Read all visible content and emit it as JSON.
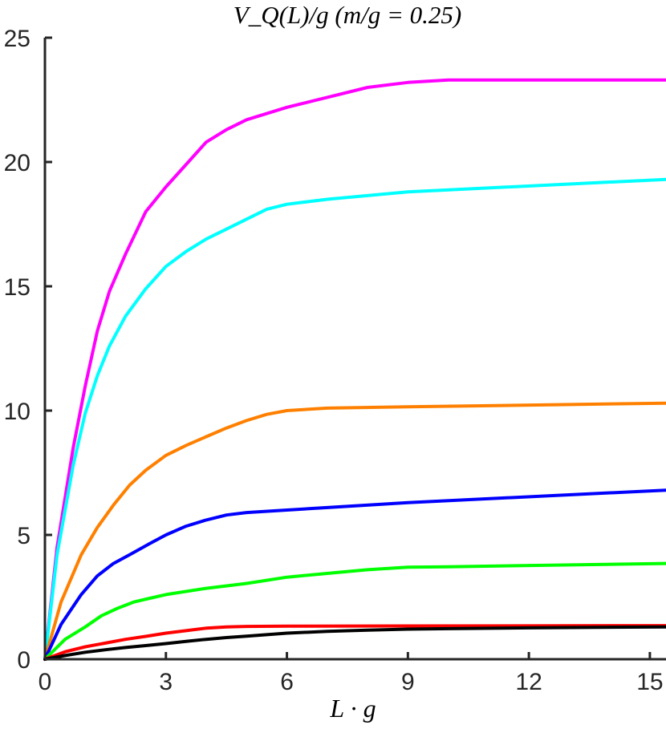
{
  "chart_data": {
    "type": "line",
    "title": "V_Q(L)/g (m/g = 0.25)",
    "xlabel": "L · g",
    "ylabel": "",
    "xlim": [
      0,
      15.4
    ],
    "ylim": [
      0,
      25
    ],
    "xticks": [
      0,
      3,
      6,
      9,
      12,
      15
    ],
    "yticks": [
      0,
      5,
      10,
      15,
      20,
      25
    ],
    "grid": false,
    "series": [
      {
        "color": "#ff00ff",
        "points": [
          [
            0,
            0
          ],
          [
            0.3,
            4.5
          ],
          [
            0.7,
            8.5
          ],
          [
            1.0,
            11.0
          ],
          [
            1.3,
            13.2
          ],
          [
            1.6,
            14.8
          ],
          [
            2.0,
            16.3
          ],
          [
            2.5,
            18.0
          ],
          [
            3.0,
            19.0
          ],
          [
            3.5,
            19.9
          ],
          [
            4.0,
            20.8
          ],
          [
            4.5,
            21.3
          ],
          [
            5.0,
            21.7
          ],
          [
            6.0,
            22.2
          ],
          [
            7.0,
            22.6
          ],
          [
            8.0,
            23.0
          ],
          [
            9.0,
            23.2
          ],
          [
            10.0,
            23.3
          ],
          [
            15.4,
            23.3
          ]
        ]
      },
      {
        "color": "#00ffff",
        "points": [
          [
            0,
            0
          ],
          [
            0.3,
            4.2
          ],
          [
            0.7,
            7.8
          ],
          [
            1.0,
            9.9
          ],
          [
            1.3,
            11.4
          ],
          [
            1.6,
            12.6
          ],
          [
            2.0,
            13.8
          ],
          [
            2.5,
            14.9
          ],
          [
            3.0,
            15.8
          ],
          [
            3.5,
            16.4
          ],
          [
            4.0,
            16.9
          ],
          [
            4.5,
            17.3
          ],
          [
            5.0,
            17.7
          ],
          [
            5.5,
            18.1
          ],
          [
            6.0,
            18.3
          ],
          [
            7.0,
            18.5
          ],
          [
            9.0,
            18.8
          ],
          [
            15.4,
            19.3
          ]
        ]
      },
      {
        "color": "#ff8000",
        "points": [
          [
            0,
            0
          ],
          [
            0.4,
            2.3
          ],
          [
            0.9,
            4.2
          ],
          [
            1.3,
            5.3
          ],
          [
            1.7,
            6.2
          ],
          [
            2.1,
            7.0
          ],
          [
            2.5,
            7.6
          ],
          [
            3.0,
            8.2
          ],
          [
            3.5,
            8.6
          ],
          [
            4.0,
            8.95
          ],
          [
            4.5,
            9.3
          ],
          [
            5.0,
            9.6
          ],
          [
            5.5,
            9.85
          ],
          [
            6.0,
            10.0
          ],
          [
            7.0,
            10.1
          ],
          [
            9.0,
            10.15
          ],
          [
            15.4,
            10.3
          ]
        ]
      },
      {
        "color": "#0000ff",
        "points": [
          [
            0,
            0
          ],
          [
            0.4,
            1.4
          ],
          [
            0.9,
            2.6
          ],
          [
            1.3,
            3.35
          ],
          [
            1.7,
            3.85
          ],
          [
            2.1,
            4.2
          ],
          [
            2.6,
            4.65
          ],
          [
            3.0,
            5.0
          ],
          [
            3.5,
            5.35
          ],
          [
            4.0,
            5.6
          ],
          [
            4.5,
            5.8
          ],
          [
            5.0,
            5.9
          ],
          [
            6.0,
            6.0
          ],
          [
            9.0,
            6.3
          ],
          [
            15.4,
            6.8
          ]
        ]
      },
      {
        "color": "#00ff00",
        "points": [
          [
            0,
            0
          ],
          [
            0.5,
            0.8
          ],
          [
            1.0,
            1.3
          ],
          [
            1.4,
            1.75
          ],
          [
            1.8,
            2.05
          ],
          [
            2.2,
            2.3
          ],
          [
            2.6,
            2.45
          ],
          [
            3.0,
            2.6
          ],
          [
            4.0,
            2.85
          ],
          [
            5.0,
            3.05
          ],
          [
            6.0,
            3.3
          ],
          [
            7.0,
            3.45
          ],
          [
            8.0,
            3.6
          ],
          [
            9.0,
            3.7
          ],
          [
            10.0,
            3.72
          ],
          [
            15.4,
            3.85
          ]
        ]
      },
      {
        "color": "#ff0000",
        "points": [
          [
            0,
            0
          ],
          [
            0.5,
            0.3
          ],
          [
            1.0,
            0.5
          ],
          [
            1.5,
            0.65
          ],
          [
            2.0,
            0.8
          ],
          [
            2.5,
            0.92
          ],
          [
            3.0,
            1.05
          ],
          [
            3.5,
            1.15
          ],
          [
            4.0,
            1.25
          ],
          [
            4.5,
            1.3
          ],
          [
            5.0,
            1.32
          ],
          [
            6.0,
            1.33
          ],
          [
            9.0,
            1.34
          ],
          [
            15.4,
            1.35
          ]
        ]
      },
      {
        "color": "#000000",
        "points": [
          [
            0,
            0
          ],
          [
            0.5,
            0.15
          ],
          [
            1.0,
            0.28
          ],
          [
            1.5,
            0.38
          ],
          [
            2.0,
            0.47
          ],
          [
            2.5,
            0.55
          ],
          [
            3.0,
            0.63
          ],
          [
            3.5,
            0.72
          ],
          [
            4.0,
            0.8
          ],
          [
            4.5,
            0.87
          ],
          [
            5.0,
            0.93
          ],
          [
            6.0,
            1.05
          ],
          [
            7.0,
            1.12
          ],
          [
            8.0,
            1.17
          ],
          [
            9.0,
            1.21
          ],
          [
            10.0,
            1.23
          ],
          [
            12.0,
            1.26
          ],
          [
            15.4,
            1.3
          ]
        ]
      }
    ]
  }
}
